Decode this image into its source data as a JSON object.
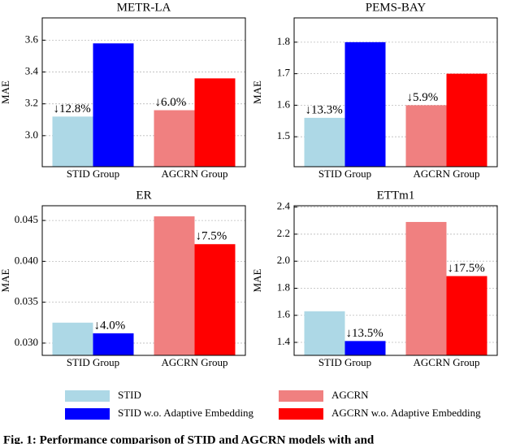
{
  "chart_data": [
    {
      "type": "bar",
      "title": "METR-LA",
      "ylabel": "MAE",
      "categories": [
        "STID Group",
        "AGCRN Group"
      ],
      "series": [
        {
          "name": "STID",
          "color": "#add8e6",
          "values": [
            3.12,
            null
          ]
        },
        {
          "name": "STID w.o. Adaptive Embedding",
          "color": "#0000ff",
          "values": [
            3.58,
            null
          ]
        },
        {
          "name": "AGCRN",
          "color": "#f08080",
          "values": [
            null,
            3.16
          ]
        },
        {
          "name": "AGCRN w.o. Adaptive Embedding",
          "color": "#ff0000",
          "values": [
            null,
            3.36
          ]
        }
      ],
      "annotations": [
        "↓12.8%",
        "↓6.0%"
      ],
      "ylim": [
        2.805,
        3.74
      ],
      "yticks": [
        {
          "value": 3,
          "label": "3.0"
        },
        3.2,
        3.4,
        3.6
      ],
      "grid": true
    },
    {
      "type": "bar",
      "title": "PEMS-BAY",
      "ylabel": "MAE",
      "categories": [
        "STID Group",
        "AGCRN Group"
      ],
      "series": [
        {
          "name": "STID",
          "color": "#add8e6",
          "values": [
            1.56,
            null
          ]
        },
        {
          "name": "STID w.o. Adaptive Embedding",
          "color": "#0000ff",
          "values": [
            1.8,
            null
          ]
        },
        {
          "name": "AGCRN",
          "color": "#f08080",
          "values": [
            null,
            1.6
          ]
        },
        {
          "name": "AGCRN w.o. Adaptive Embedding",
          "color": "#ff0000",
          "values": [
            null,
            1.7
          ]
        }
      ],
      "annotations": [
        "↓13.3%",
        "↓5.9%"
      ],
      "ylim": [
        1.405,
        1.877
      ],
      "yticks": [
        1.5,
        1.6,
        1.7,
        1.8
      ],
      "grid": true
    },
    {
      "type": "bar",
      "title": "ER",
      "ylabel": "MAE",
      "categories": [
        "STID Group",
        "AGCRN Group"
      ],
      "series": [
        {
          "name": "STID",
          "color": "#add8e6",
          "values": [
            0.0325,
            null
          ]
        },
        {
          "name": "STID w.o. Adaptive Embedding",
          "color": "#0000ff",
          "values": [
            0.0312,
            null
          ]
        },
        {
          "name": "AGCRN",
          "color": "#f08080",
          "values": [
            null,
            0.0455
          ]
        },
        {
          "name": "AGCRN w.o. Adaptive Embedding",
          "color": "#ff0000",
          "values": [
            null,
            0.0421
          ]
        }
      ],
      "annotations": [
        "↓4.0%",
        "↓7.5%"
      ],
      "ylim": [
        0.0285,
        0.0468
      ],
      "yticks": [
        {
          "value": 0.03,
          "label": "0.030"
        },
        0.035,
        {
          "value": 0.04,
          "label": "0.040"
        },
        0.045
      ],
      "grid": true
    },
    {
      "type": "bar",
      "title": "ETTm1",
      "ylabel": "MAE",
      "categories": [
        "STID Group",
        "AGCRN Group"
      ],
      "series": [
        {
          "name": "STID",
          "color": "#add8e6",
          "values": [
            1.63,
            null
          ]
        },
        {
          "name": "STID w.o. Adaptive Embedding",
          "color": "#0000ff",
          "values": [
            1.41,
            null
          ]
        },
        {
          "name": "AGCRN",
          "color": "#f08080",
          "values": [
            null,
            2.29
          ]
        },
        {
          "name": "AGCRN w.o. Adaptive Embedding",
          "color": "#ff0000",
          "values": [
            null,
            1.89
          ]
        }
      ],
      "annotations": [
        "↓13.5%",
        "↓17.5%"
      ],
      "ylim": [
        1.304,
        2.41
      ],
      "yticks": [
        1.4,
        1.6,
        1.8,
        {
          "value": 2,
          "label": "2.0"
        },
        2.2,
        2.4
      ],
      "grid": true
    }
  ],
  "caption": "Fig. 1: Performance comparison of STID and AGCRN models with and"
}
